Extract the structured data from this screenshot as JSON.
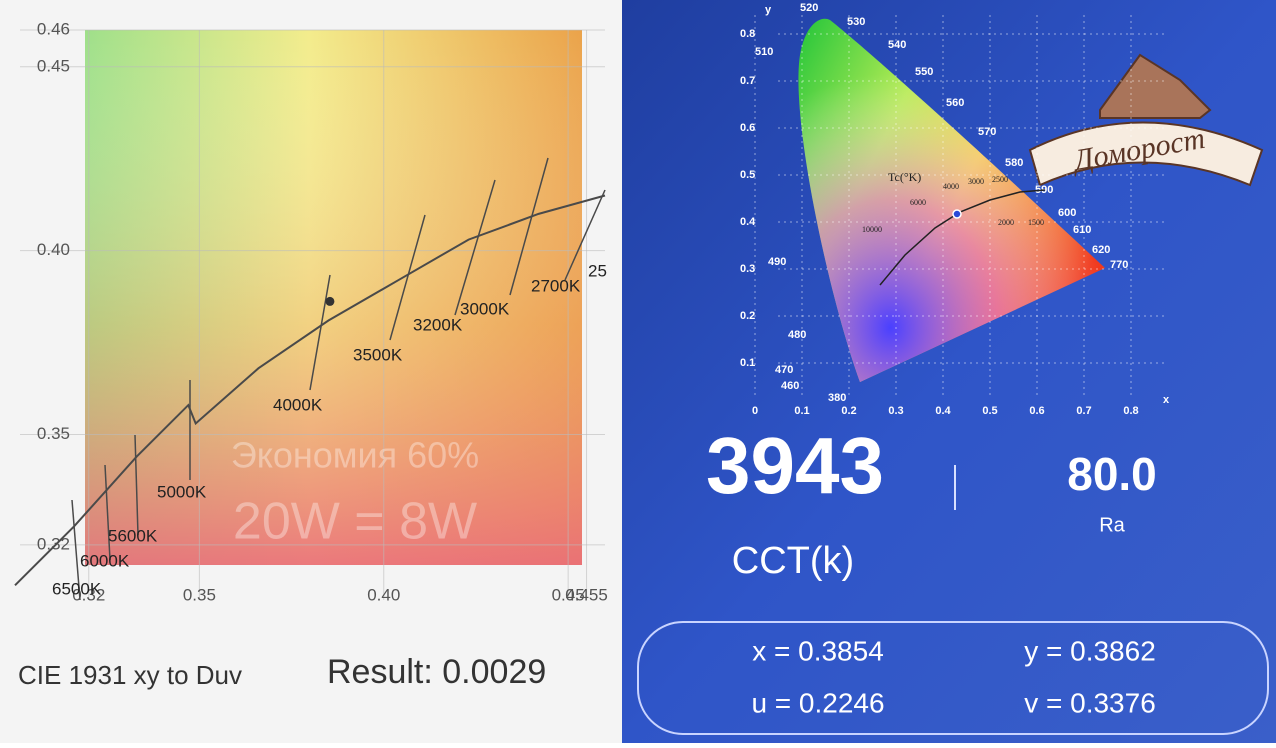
{
  "chart_data": {
    "type": "line",
    "xlim": [
      0.3,
      0.46
    ],
    "ylim": [
      0.305,
      0.46
    ],
    "xticks": [
      0.32,
      0.35,
      {
        "value": 0.4,
        "label": "0.40"
      },
      0.45,
      0.455
    ],
    "yticks": [
      0.32,
      0.35,
      {
        "value": 0.4,
        "label": "0.40"
      },
      0.45,
      0.46
    ],
    "grid": true,
    "color": "#4a4a4a",
    "x": [
      0.3,
      0.316,
      0.333,
      0.347,
      0.349,
      0.366,
      0.385,
      0.404,
      0.423,
      0.442,
      0.46
    ],
    "values": [
      0.309,
      0.325,
      0.344,
      0.358,
      0.353,
      0.368,
      0.381,
      0.392,
      0.403,
      0.41,
      0.415
    ],
    "point": {
      "x": 0.3854,
      "y": 0.3862
    },
    "annotations": [
      "6500K",
      "6000K",
      "5600K",
      "5000K",
      "4000K",
      "3500K",
      "3200K",
      "3000K",
      "2700K",
      "25"
    ],
    "watermark": [
      "Экономия 60%",
      "20W = 8W"
    ],
    "caption": "CIE 1931 xy to Duv",
    "result": "Result: 0.0029"
  },
  "meter": {
    "y_axis_label": "y",
    "x_axis_label": "x",
    "yticks": [
      "0.8",
      "0.7",
      "0.6",
      "0.5",
      "0.4",
      "0.3",
      "0.2",
      "0.1"
    ],
    "xticks": [
      "0",
      "0.1",
      "0.2",
      "0.3",
      "0.4",
      "0.5",
      "0.6",
      "0.7",
      "0.8"
    ],
    "wavelengths": [
      "520",
      "530",
      "510",
      "540",
      "550",
      "560",
      "570",
      "580",
      "590",
      "600",
      "610",
      "620",
      "770",
      "490",
      "480",
      "470",
      "460",
      "380"
    ],
    "tc_label": "Tc(°K)",
    "temperatures": [
      "10000",
      "6000",
      "4000",
      "3000",
      "2500",
      "2000",
      "1500"
    ],
    "logo": "Доморост",
    "cct": "3943",
    "cct_label": "CCT(k)",
    "ra": "80.0",
    "ra_label": "Ra",
    "readings": [
      "x = 0.3854",
      "y = 0.3862",
      "u = 0.2246",
      "v = 0.3376"
    ]
  }
}
